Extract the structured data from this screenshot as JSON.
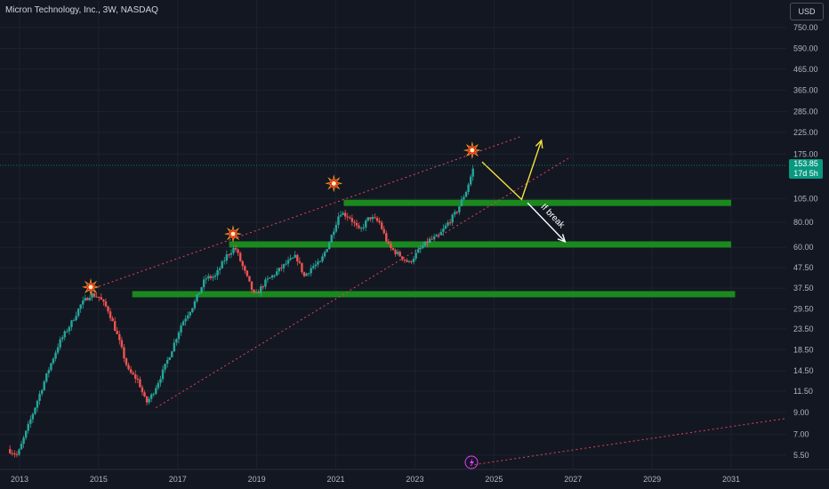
{
  "header": {
    "title": "Micron Technology, Inc., 3W, NASDAQ",
    "currency": "USD"
  },
  "last_price": {
    "value": "153.85",
    "countdown": "17d 5h"
  },
  "chart_data": {
    "type": "candlestick",
    "title": "Micron Technology, Inc., 3W, NASDAQ",
    "y_scale": "log",
    "y_ticks": [
      "750.00",
      "590.00",
      "465.00",
      "365.00",
      "285.00",
      "225.00",
      "175.00",
      "105.00",
      "80.00",
      "60.00",
      "47.50",
      "37.50",
      "29.50",
      "23.50",
      "18.50",
      "14.50",
      "11.50",
      "9.00",
      "7.00",
      "5.50"
    ],
    "x_ticks": [
      "2013",
      "2015",
      "2017",
      "2019",
      "2021",
      "2023",
      "2025",
      "2027",
      "2029",
      "2031"
    ],
    "price_path": [
      {
        "t": 2012.7,
        "p": 5.9
      },
      {
        "t": 2012.95,
        "p": 5.5
      },
      {
        "t": 2013.2,
        "p": 7.5
      },
      {
        "t": 2013.5,
        "p": 11
      },
      {
        "t": 2013.75,
        "p": 15
      },
      {
        "t": 2014.0,
        "p": 20
      },
      {
        "t": 2014.3,
        "p": 25
      },
      {
        "t": 2014.55,
        "p": 31
      },
      {
        "t": 2014.8,
        "p": 35
      },
      {
        "t": 2015.0,
        "p": 34
      },
      {
        "t": 2015.25,
        "p": 29
      },
      {
        "t": 2015.5,
        "p": 21
      },
      {
        "t": 2015.75,
        "p": 14.5
      },
      {
        "t": 2016.0,
        "p": 13
      },
      {
        "t": 2016.2,
        "p": 10
      },
      {
        "t": 2016.35,
        "p": 11
      },
      {
        "t": 2016.6,
        "p": 14
      },
      {
        "t": 2016.85,
        "p": 18.5
      },
      {
        "t": 2017.1,
        "p": 25
      },
      {
        "t": 2017.4,
        "p": 31
      },
      {
        "t": 2017.7,
        "p": 42
      },
      {
        "t": 2017.95,
        "p": 43
      },
      {
        "t": 2018.25,
        "p": 55
      },
      {
        "t": 2018.45,
        "p": 60
      },
      {
        "t": 2018.7,
        "p": 45
      },
      {
        "t": 2018.95,
        "p": 34
      },
      {
        "t": 2019.2,
        "p": 40
      },
      {
        "t": 2019.5,
        "p": 45
      },
      {
        "t": 2019.75,
        "p": 50
      },
      {
        "t": 2020.0,
        "p": 54
      },
      {
        "t": 2020.2,
        "p": 43
      },
      {
        "t": 2020.4,
        "p": 48
      },
      {
        "t": 2020.6,
        "p": 50
      },
      {
        "t": 2020.85,
        "p": 65
      },
      {
        "t": 2021.1,
        "p": 90
      },
      {
        "t": 2021.35,
        "p": 85
      },
      {
        "t": 2021.6,
        "p": 72
      },
      {
        "t": 2021.85,
        "p": 85
      },
      {
        "t": 2022.1,
        "p": 80
      },
      {
        "t": 2022.35,
        "p": 60
      },
      {
        "t": 2022.6,
        "p": 55
      },
      {
        "t": 2022.85,
        "p": 50
      },
      {
        "t": 2023.1,
        "p": 58
      },
      {
        "t": 2023.35,
        "p": 65
      },
      {
        "t": 2023.6,
        "p": 68
      },
      {
        "t": 2023.85,
        "p": 80
      },
      {
        "t": 2024.05,
        "p": 90
      },
      {
        "t": 2024.3,
        "p": 115
      },
      {
        "t": 2024.5,
        "p": 153.85
      }
    ],
    "support_zones": [
      {
        "price": 100,
        "from": 2021.2,
        "to": 2031.0
      },
      {
        "price": 62,
        "from": 2018.3,
        "to": 2031.0
      },
      {
        "price": 35,
        "from": 2015.85,
        "to": 2031.1
      }
    ],
    "trendlines": [
      {
        "from": {
          "t": 2014.8,
          "p": 37
        },
        "to": {
          "t": 2025.7,
          "p": 215
        }
      },
      {
        "from": {
          "t": 2016.45,
          "p": 9.5
        },
        "to": {
          "t": 2026.95,
          "p": 170
        }
      },
      {
        "from": {
          "t": 2024.4,
          "p": 4.9
        },
        "to": {
          "t": 2032.4,
          "p": 8.4
        }
      }
    ],
    "peak_markers": [
      {
        "t": 2014.8,
        "p": 38
      },
      {
        "t": 2018.4,
        "p": 70
      },
      {
        "t": 2020.95,
        "p": 125
      },
      {
        "t": 2024.45,
        "p": 183
      }
    ],
    "arrows": [
      {
        "color": "#f5e23c",
        "points": [
          {
            "t": 2024.7,
            "p": 160
          },
          {
            "t": 2025.7,
            "p": 104
          },
          {
            "t": 2026.2,
            "p": 205
          }
        ]
      },
      {
        "color": "#ffffff",
        "points": [
          {
            "t": 2025.85,
            "p": 100
          },
          {
            "t": 2026.8,
            "p": 64
          }
        ],
        "label": "If break"
      }
    ],
    "colors": {
      "up": "#26a69a",
      "down": "#ef5350",
      "zone": "#1a8f1f",
      "trendline": "#e0445a"
    }
  }
}
